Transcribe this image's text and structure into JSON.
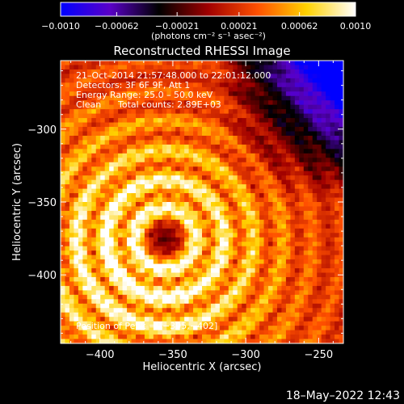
{
  "chart_data": {
    "type": "heatmap",
    "title": "Reconstructed RHESSI Image",
    "xlabel": "Heliocentric X (arcsec)",
    "ylabel": "Heliocentric Y (arcsec)",
    "xlim": [
      -427,
      -233
    ],
    "ylim": [
      -447,
      -253
    ],
    "x_ticks": [
      -400,
      -350,
      -300,
      -250
    ],
    "y_ticks": [
      -300,
      -350,
      -400
    ],
    "x_tick_labels": [
      "−400",
      "−350",
      "−300",
      "−250"
    ],
    "y_tick_labels": [
      "−300",
      "−350",
      "−400"
    ],
    "colorbar": {
      "range": [
        -0.001,
        0.001
      ],
      "ticks": [
        -0.001,
        -0.00062,
        -0.00021,
        0.00021,
        0.00062,
        0.001
      ],
      "tick_labels": [
        "−0.0010",
        "−0.00062",
        "−0.00021",
        "0.00021",
        "0.00062",
        "0.0010"
      ],
      "unit_label": "(photons cm⁻² s⁻¹ asec⁻²)"
    },
    "annotations": {
      "time_range": "21–Oct–2014 21:57:48.000 to 22:01:12.000",
      "detectors": "Detectors: 3F 6F 9F, Att 1",
      "energy": "Energy Range: 25.0 – 50.0 keV",
      "method": "Clean",
      "counts": "Total counts: 2.89E+03",
      "peak": "Position of Peak = [−395,−402]"
    },
    "peak_position": [
      -395,
      -402
    ],
    "colormap": [
      "#0000ff",
      "#5a00c8",
      "#000000",
      "#a00000",
      "#ff5000",
      "#ffd200",
      "#ffffff"
    ]
  },
  "footer": {
    "date": "18–May–2022 12:43"
  }
}
